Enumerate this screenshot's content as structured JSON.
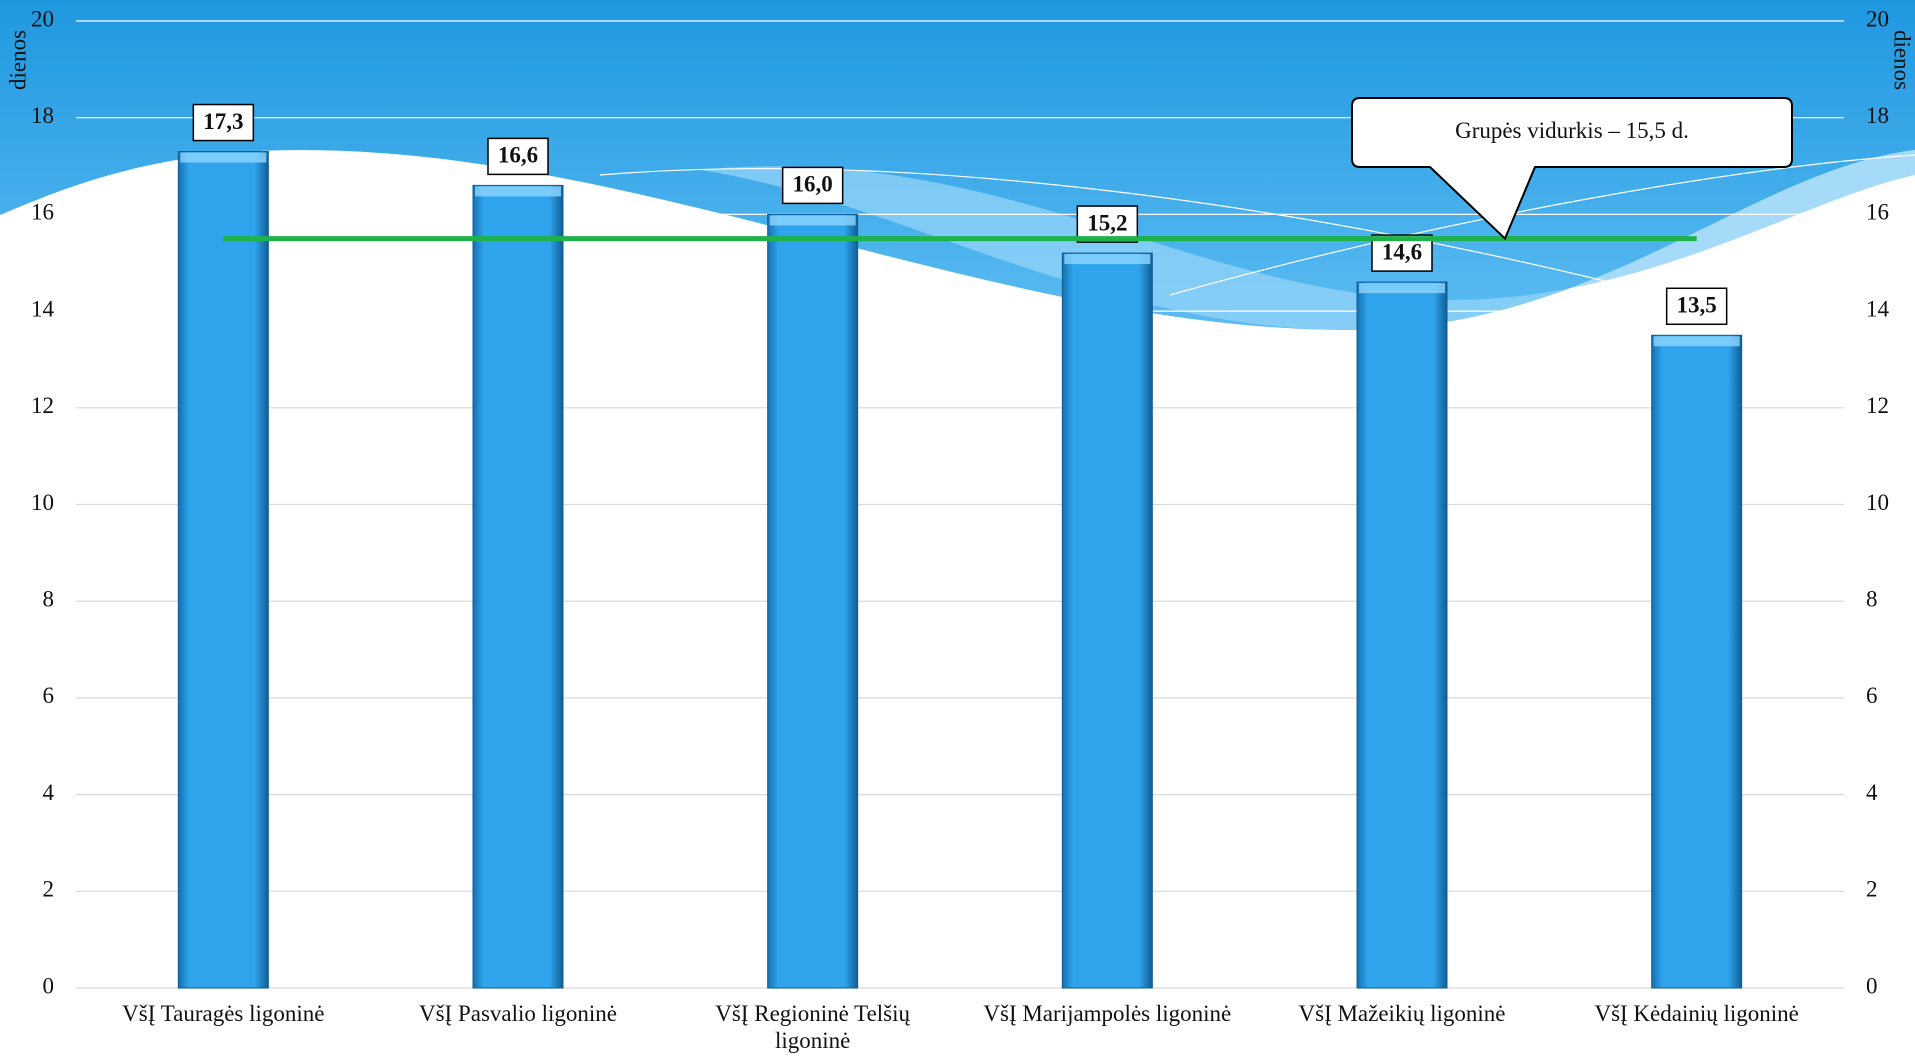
{
  "chart_data": {
    "type": "bar",
    "categories": [
      "VšĮ Tauragės ligoninė",
      "VšĮ Pasvalio ligoninė",
      "VšĮ Regioninė Telšių ligoninė",
      "VšĮ Marijampolės ligoninė",
      "VšĮ Mažeikių ligoninė",
      "VšĮ Kėdainių ligoninė"
    ],
    "values": [
      17.3,
      16.6,
      16.0,
      15.2,
      14.6,
      13.5
    ],
    "value_labels": [
      "17,3",
      "16,6",
      "16,0",
      "15,2",
      "14,6",
      "13,5"
    ],
    "color": "#2e9de6",
    "ylabel": "dienos",
    "y2label": "dienos",
    "ylim": [
      0,
      20
    ],
    "yticks": [
      0,
      2,
      4,
      6,
      8,
      10,
      12,
      14,
      16,
      18,
      20
    ],
    "y2lim": [
      0,
      20
    ],
    "y2ticks": [
      0,
      2,
      4,
      6,
      8,
      10,
      12,
      14,
      16,
      18,
      20
    ],
    "grid": true,
    "average": {
      "value": 15.5,
      "label": "Grupės vidurkis – 15,5 d.",
      "color": "#1db34a"
    }
  }
}
